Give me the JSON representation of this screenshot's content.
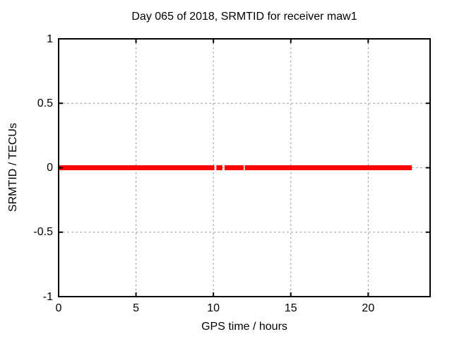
{
  "chart_data": {
    "type": "line",
    "title": "Day 065 of 2018, SRMTID for receiver maw1",
    "xlabel": "GPS time / hours",
    "ylabel": "SRMTID / TECUs",
    "xlim": [
      0,
      24
    ],
    "ylim": [
      -1,
      1
    ],
    "grid": true,
    "legend": "none",
    "xticks": [
      {
        "value": 0,
        "label": "0"
      },
      {
        "value": 5,
        "label": "5"
      },
      {
        "value": 10,
        "label": "10"
      },
      {
        "value": 15,
        "label": "15"
      },
      {
        "value": 20,
        "label": "20"
      }
    ],
    "yticks": [
      {
        "value": -1,
        "label": "-1"
      },
      {
        "value": -0.5,
        "label": "-0.5"
      },
      {
        "value": 0,
        "label": "0"
      },
      {
        "value": 0.5,
        "label": "0.5"
      },
      {
        "value": 1,
        "label": "1"
      }
    ],
    "series": [
      {
        "name": "SRMTID",
        "color": "#ff0000",
        "y_value": 0,
        "segments_x_hours": [
          [
            0,
            10.06
          ],
          [
            10.19,
            10.58
          ],
          [
            10.72,
            11.95
          ],
          [
            12.03,
            22.82
          ]
        ]
      }
    ]
  },
  "colors": {
    "background": "#ffffff",
    "axis_border": "#000000",
    "grid": "#909090",
    "text": "#000000",
    "series_red": "#ff0000"
  }
}
